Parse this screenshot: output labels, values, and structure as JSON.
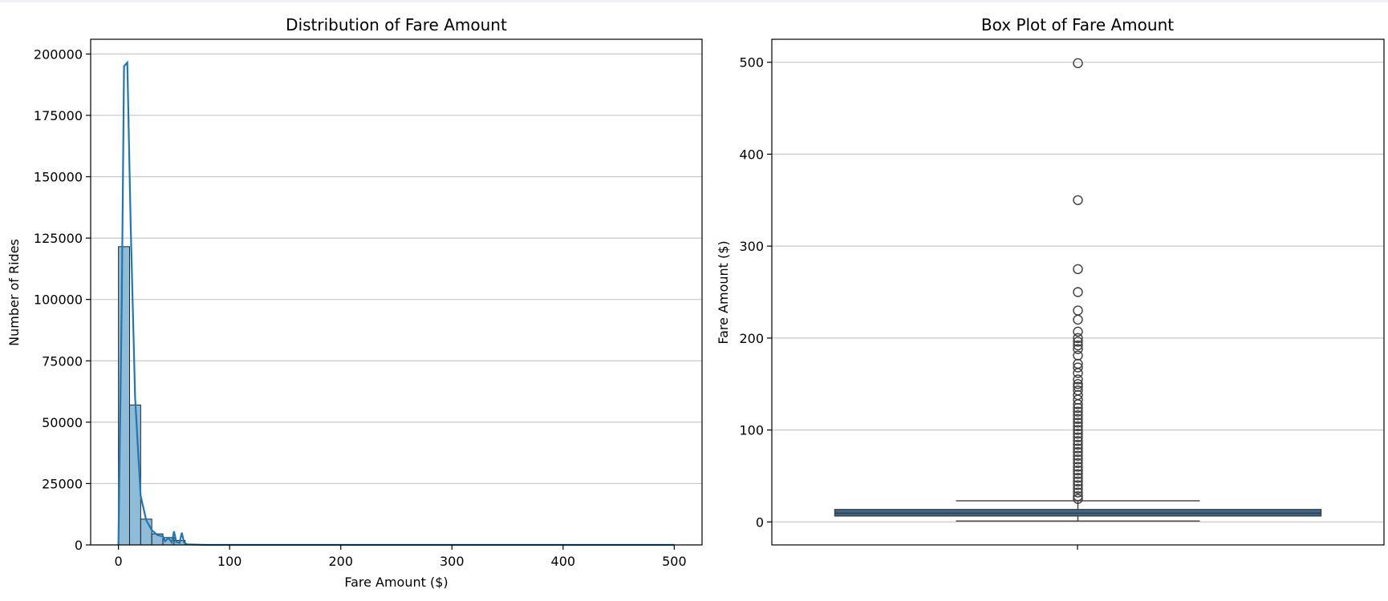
{
  "chart_data": [
    {
      "type": "histogram",
      "title": "Distribution of Fare Amount",
      "xlabel": "Fare Amount ($)",
      "ylabel": "Number of Rides",
      "xlim": [
        -25,
        525
      ],
      "ylim": [
        0,
        206000
      ],
      "xticks": [
        0,
        100,
        200,
        300,
        400,
        500
      ],
      "yticks": [
        0,
        25000,
        50000,
        75000,
        100000,
        125000,
        150000,
        175000,
        200000
      ],
      "grid": "horizontal",
      "bar_color": "#8fbcd8",
      "line_color": "#1f77b4",
      "bins": [
        {
          "start": 0,
          "end": 10,
          "count": 121500
        },
        {
          "start": 10,
          "end": 20,
          "count": 57000
        },
        {
          "start": 20,
          "end": 30,
          "count": 10500
        },
        {
          "start": 30,
          "end": 40,
          "count": 4500
        },
        {
          "start": 40,
          "end": 50,
          "count": 3000
        },
        {
          "start": 50,
          "end": 60,
          "count": 1800
        },
        {
          "start": 60,
          "end": 70,
          "count": 300
        },
        {
          "start": 70,
          "end": 80,
          "count": 100
        }
      ],
      "kde": [
        [
          0,
          0
        ],
        [
          3,
          100000
        ],
        [
          5,
          195000
        ],
        [
          8,
          196500
        ],
        [
          11,
          130000
        ],
        [
          15,
          60000
        ],
        [
          20,
          20000
        ],
        [
          25,
          10000
        ],
        [
          30,
          6000
        ],
        [
          35,
          4000
        ],
        [
          40,
          3500
        ],
        [
          42,
          1500
        ],
        [
          45,
          2800
        ],
        [
          48,
          1000
        ],
        [
          50,
          5500
        ],
        [
          52,
          1200
        ],
        [
          55,
          800
        ],
        [
          57,
          5000
        ],
        [
          59,
          1000
        ],
        [
          62,
          200
        ],
        [
          80,
          0
        ],
        [
          500,
          0
        ]
      ]
    },
    {
      "type": "boxplot",
      "title": "Box Plot of Fare Amount",
      "xlabel": "",
      "ylabel": "Fare Amount ($)",
      "ylim": [
        -25,
        525
      ],
      "yticks": [
        0,
        100,
        200,
        300,
        400,
        500
      ],
      "grid": "horizontal",
      "box_color": "#3a6b94",
      "stats": {
        "whisker_low": 1,
        "q1": 6.5,
        "median": 9.5,
        "q3": 13.5,
        "whisker_high": 23
      },
      "outliers": [
        499,
        350,
        275,
        250,
        230,
        220,
        207,
        200,
        196,
        192,
        188,
        181,
        172,
        168,
        162,
        155,
        150,
        147,
        143,
        138,
        133,
        128,
        124,
        120,
        116,
        112,
        108,
        104,
        100,
        96,
        92,
        88,
        84,
        80,
        76,
        72,
        68,
        64,
        60,
        56,
        52,
        48,
        44,
        40,
        36,
        32,
        28,
        25
      ]
    }
  ]
}
